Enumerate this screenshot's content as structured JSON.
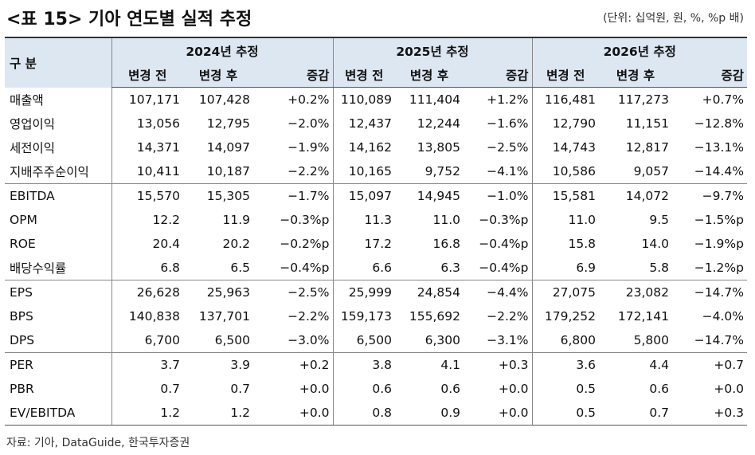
{
  "title": "<표 15> 기아 연도별 실적 추정",
  "unit": "(단위: 십억원, 원, %, %p 배)",
  "table": {
    "corner": "구 분",
    "years": [
      "2024년 추정",
      "2025년 추정",
      "2026년 추정"
    ],
    "subheaders": [
      "변경 전",
      "변경 후",
      "증감"
    ],
    "groups": [
      [
        [
          "매출액",
          "107,171",
          "107,428",
          "+0.2%",
          "110,089",
          "111,404",
          "+1.2%",
          "116,481",
          "117,273",
          "+0.7%"
        ],
        [
          "영업이익",
          "13,056",
          "12,795",
          "-2.0%",
          "12,437",
          "12,244",
          "-1.6%",
          "12,790",
          "11,151",
          "-12.8%"
        ],
        [
          "세전이익",
          "14,371",
          "14,097",
          "-1.9%",
          "14,162",
          "13,805",
          "-2.5%",
          "14,743",
          "12,817",
          "-13.1%"
        ],
        [
          "지배주주순이익",
          "10,411",
          "10,187",
          "-2.2%",
          "10,165",
          "9,752",
          "-4.1%",
          "10,586",
          "9,057",
          "-14.4%"
        ]
      ],
      [
        [
          "EBITDA",
          "15,570",
          "15,305",
          "-1.7%",
          "15,097",
          "14,945",
          "-1.0%",
          "15,581",
          "14,072",
          "-9.7%"
        ],
        [
          "OPM",
          "12.2",
          "11.9",
          "-0.3%p",
          "11.3",
          "11.0",
          "-0.3%p",
          "11.0",
          "9.5",
          "-1.5%p"
        ],
        [
          "ROE",
          "20.4",
          "20.2",
          "-0.2%p",
          "17.2",
          "16.8",
          "-0.4%p",
          "15.8",
          "14.0",
          "-1.9%p"
        ],
        [
          "배당수익률",
          "6.8",
          "6.5",
          "-0.4%p",
          "6.6",
          "6.3",
          "-0.4%p",
          "6.9",
          "5.8",
          "-1.2%p"
        ]
      ],
      [
        [
          "EPS",
          "26,628",
          "25,963",
          "-2.5%",
          "25,999",
          "24,854",
          "-4.4%",
          "27,075",
          "23,082",
          "-14.7%"
        ],
        [
          "BPS",
          "140,838",
          "137,701",
          "-2.2%",
          "159,173",
          "155,692",
          "-2.2%",
          "179,252",
          "172,141",
          "-4.0%"
        ],
        [
          "DPS",
          "6,700",
          "6,500",
          "-3.0%",
          "6,500",
          "6,300",
          "-3.1%",
          "6,800",
          "5,800",
          "-14.7%"
        ]
      ],
      [
        [
          "PER",
          "3.7",
          "3.9",
          "+0.2",
          "3.8",
          "4.1",
          "+0.3",
          "3.6",
          "4.4",
          "+0.7"
        ],
        [
          "PBR",
          "0.7",
          "0.7",
          "+0.0",
          "0.6",
          "0.6",
          "+0.0",
          "0.5",
          "0.6",
          "+0.0"
        ],
        [
          "EV/EBITDA",
          "1.2",
          "1.2",
          "+0.0",
          "0.8",
          "0.9",
          "+0.0",
          "0.5",
          "0.7",
          "+0.3"
        ]
      ]
    ]
  },
  "source": "자료: 기아, DataGuide, 한국투자증권"
}
